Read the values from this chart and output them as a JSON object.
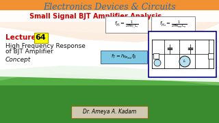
{
  "title": "Electronics Devices & Circuits",
  "subtitle": "Small Signal BJT Amplifier Analysis",
  "lecture_label": "Lecture",
  "lecture_num": "64",
  "lecture_num_bg": "#FFFF00",
  "main_text_line1": "High Frequency Response",
  "main_text_line2": "of BJT Amplifier",
  "main_text_line3": "Concept",
  "author": "Dr. Ameya A. Kadam",
  "bg_color": "#FFFFFF",
  "title_color": "#2e6da4",
  "subtitle_color": "#cc0000",
  "lecture_color": "#cc0000",
  "main_text_color": "#111111",
  "author_bg": "#d0c8b0",
  "author_color": "#000000",
  "wave_orange": "#e87010",
  "wave_green": "#3a8a30",
  "circuit_box_color": "#00008B",
  "formula_box_bg": "#ffffff",
  "formula3_bg": "#7ec8e3"
}
